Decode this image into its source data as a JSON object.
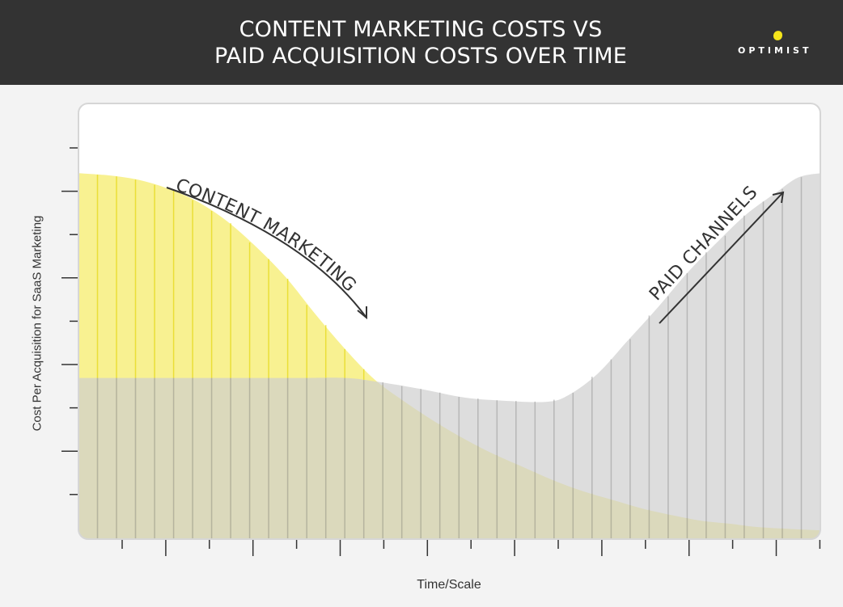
{
  "header": {
    "title_line1": "CONTENT MARKETING COSTS VS",
    "title_line2": "PAID ACQUISITION COSTS OVER TIME",
    "logo_text": "OPTIMIST",
    "background_color": "#333333",
    "logo_accent_color": "#f5e51b"
  },
  "chart_data": {
    "type": "area",
    "title": "CONTENT MARKETING COSTS VS PAID ACQUISITION COSTS OVER TIME",
    "xlabel": "Time/Scale",
    "ylabel": "Cost Per Acquisition for SaaS Marketing",
    "x_ticks": 17,
    "y_ticks": 9,
    "xlim": [
      0,
      10
    ],
    "ylim": [
      0,
      10
    ],
    "grid": false,
    "series": [
      {
        "name": "CONTENT MARKETING",
        "color": "#f7ef7e",
        "stripe_color": "#e6d81a",
        "points": [
          [
            0.0,
            8.4
          ],
          [
            0.4,
            8.35
          ],
          [
            0.8,
            8.25
          ],
          [
            1.2,
            8.05
          ],
          [
            1.6,
            7.75
          ],
          [
            2.0,
            7.3
          ],
          [
            2.4,
            6.7
          ],
          [
            2.8,
            6.0
          ],
          [
            3.2,
            5.15
          ],
          [
            3.6,
            4.35
          ],
          [
            4.0,
            3.65
          ],
          [
            4.4,
            3.15
          ],
          [
            4.8,
            2.7
          ],
          [
            5.2,
            2.3
          ],
          [
            5.6,
            1.95
          ],
          [
            6.0,
            1.65
          ],
          [
            6.4,
            1.35
          ],
          [
            6.8,
            1.1
          ],
          [
            7.2,
            0.9
          ],
          [
            7.6,
            0.7
          ],
          [
            8.0,
            0.55
          ],
          [
            8.4,
            0.42
          ],
          [
            8.8,
            0.35
          ],
          [
            9.2,
            0.27
          ],
          [
            10.0,
            0.2
          ]
        ]
      },
      {
        "name": "PAID CHANNELS",
        "color": "#cfcfcf",
        "stripe_color": "#9f9f9f",
        "points": [
          [
            0.0,
            3.7
          ],
          [
            1.0,
            3.7
          ],
          [
            2.0,
            3.7
          ],
          [
            3.0,
            3.7
          ],
          [
            3.6,
            3.7
          ],
          [
            4.0,
            3.62
          ],
          [
            4.6,
            3.45
          ],
          [
            5.2,
            3.25
          ],
          [
            5.7,
            3.18
          ],
          [
            6.3,
            3.15
          ],
          [
            6.6,
            3.3
          ],
          [
            7.0,
            3.8
          ],
          [
            7.4,
            4.55
          ],
          [
            7.8,
            5.3
          ],
          [
            8.2,
            6.1
          ],
          [
            8.6,
            6.8
          ],
          [
            9.0,
            7.45
          ],
          [
            9.4,
            7.95
          ],
          [
            9.7,
            8.3
          ],
          [
            10.0,
            8.4
          ]
        ]
      }
    ]
  }
}
